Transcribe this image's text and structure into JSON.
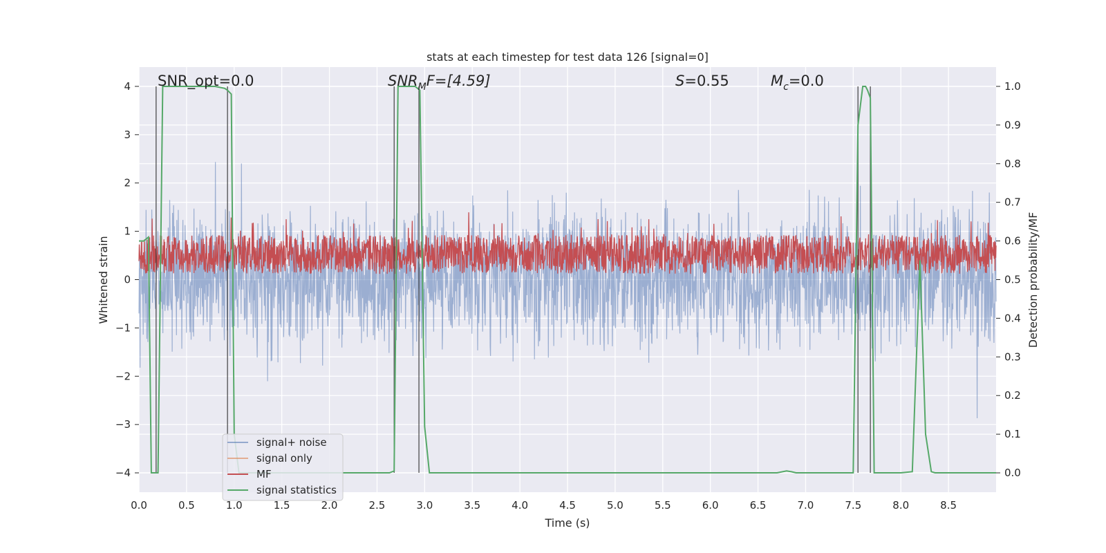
{
  "chart_data": {
    "type": "line",
    "title": "stats at each timestep for test data 126 [signal=0]",
    "xlabel": "Time (s)",
    "ylabel": "Whitened strain",
    "y2label": "Detection probability/MF",
    "xlim": [
      0.0,
      9.0
    ],
    "ylim": [
      -4.4,
      4.4
    ],
    "y2lim": [
      -0.05,
      1.05
    ],
    "xticks": [
      "0.0",
      "0.5",
      "1.0",
      "1.5",
      "2.0",
      "2.5",
      "3.0",
      "3.5",
      "4.0",
      "4.5",
      "5.0",
      "5.5",
      "6.0",
      "6.5",
      "7.0",
      "7.5",
      "8.0",
      "8.5"
    ],
    "yticks": [
      "4",
      "3",
      "2",
      "1",
      "0",
      "−1",
      "−2",
      "−3",
      "−4"
    ],
    "y2ticks": [
      "1.0",
      "0.9",
      "0.8",
      "0.7",
      "0.6",
      "0.5",
      "0.4",
      "0.3",
      "0.2",
      "0.1",
      "0.0"
    ],
    "grid": true,
    "legend_position": "lower-left",
    "annotations": {
      "snr_opt": "SNR_opt=0.0",
      "snr_mf_main": "SNR",
      "snr_mf_sub": "M",
      "snr_mf_rest": "F=[4.59]",
      "s_label": "S",
      "s_value": "=0.55",
      "mc_label": "M",
      "mc_sub": "c",
      "mc_value": "=0.0"
    },
    "series": [
      {
        "name": "signal+ noise",
        "color": "#4c72b0",
        "note": "noise, roughly symmetric about 0 with envelope about ±2"
      },
      {
        "name": "signal only",
        "color": "#dd8452"
      },
      {
        "name": "MF",
        "color": "#c44e52",
        "note": "matched-filter trace between about 0.5 and 0.67 on the right axis"
      },
      {
        "name": "signal statistics",
        "color": "#55a868",
        "x": [
          0.0,
          0.05,
          0.1,
          0.13,
          0.17,
          0.2,
          0.25,
          0.3,
          0.4,
          0.5,
          0.6,
          0.7,
          0.8,
          0.9,
          0.93,
          0.97,
          1.0,
          1.05,
          1.1,
          1.2,
          1.5,
          2.0,
          2.5,
          2.63,
          2.68,
          2.72,
          2.76,
          2.8,
          2.85,
          2.9,
          2.95,
          3.0,
          3.05,
          3.1,
          3.5,
          4.0,
          4.5,
          5.0,
          5.5,
          6.0,
          6.5,
          6.7,
          6.8,
          6.85,
          6.9,
          7.0,
          7.3,
          7.5,
          7.55,
          7.6,
          7.63,
          7.65,
          7.68,
          7.72,
          7.75,
          7.8,
          8.0,
          8.12,
          8.2,
          8.26,
          8.32,
          8.36,
          8.5,
          8.7,
          9.0
        ],
        "values": [
          0.6,
          0.6,
          0.61,
          0.0,
          0.0,
          0.0,
          1.0,
          1.0,
          1.0,
          1.0,
          1.0,
          1.0,
          1.0,
          0.995,
          0.99,
          0.98,
          0.1,
          0.0,
          0.0,
          0.0,
          0.0,
          0.0,
          0.0,
          0.0,
          0.005,
          1.0,
          1.0,
          1.0,
          1.0,
          1.0,
          0.99,
          0.12,
          0.0,
          0.0,
          0.0,
          0.0,
          0.0,
          0.0,
          0.0,
          0.0,
          0.0,
          0.0,
          0.005,
          0.003,
          0.0,
          0.0,
          0.0,
          0.0,
          0.9,
          1.0,
          1.0,
          0.99,
          0.97,
          0.0,
          0.0,
          0.0,
          0.0,
          0.003,
          0.55,
          0.1,
          0.003,
          0.0,
          0.0,
          0.0,
          0.0
        ]
      }
    ],
    "markers_x": [
      0.18,
      0.93,
      2.68,
      2.94,
      7.55,
      7.68
    ]
  }
}
